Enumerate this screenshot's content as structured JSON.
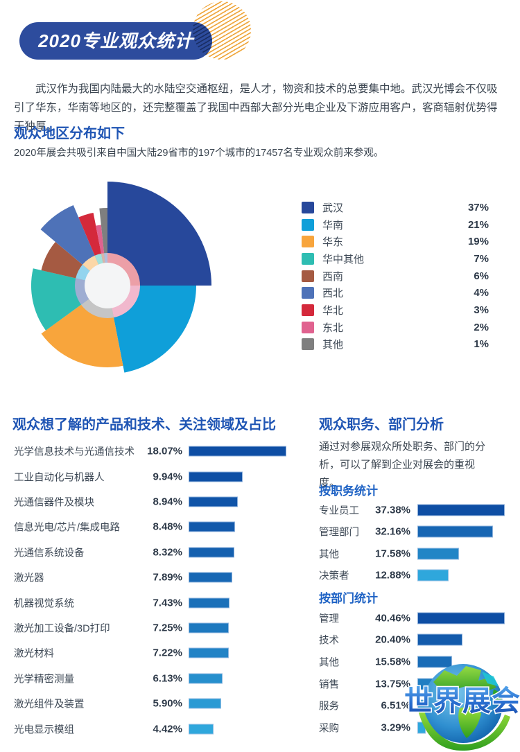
{
  "header": {
    "title": "2020专业观众统计"
  },
  "intro_text": "武汉作为我国内陆最大的水陆空交通枢纽，是人才，物资和技术的总要集中地。武汉光博会不仅吸引了华东，华南等地区的，还完整覆盖了我国中西部大部分光电企业及下游应用客户，客商辐射优势得天独厚。",
  "region_section": {
    "title": "观众地区分布如下",
    "description": "2020年展会共吸引来自中国大陆29省市的197个城市的17457名专业观众前来参观。"
  },
  "products_section": {
    "title": "观众想了解的产品和技术、关注领域及占比"
  },
  "audience_section": {
    "title": "观众职务、部门分析",
    "description": "通过对参展观众所处职务、部门的分析，可以了解到企业对展会的重视度。",
    "by_role_title": "按职务统计",
    "by_dept_title": "按部门统计"
  },
  "watermark": {
    "text": "世界展会"
  },
  "colors": {
    "title_blue": "#1f55b4",
    "subtitle_blue": "#1e62c4",
    "text_dark": "#3b4550",
    "pill_navy": "#2d4c9d",
    "stripe_orange": "#f0a83f",
    "bar_dark": "#0e4ea4",
    "bar_light": "#2fa7dc"
  },
  "chart_data": [
    {
      "id": "regions",
      "type": "pie",
      "style": "rose",
      "title": "观众地区分布",
      "unit": "%",
      "legend_position": "right",
      "categories": [
        "武汉",
        "华南",
        "华东",
        "华中其他",
        "西南",
        "西北",
        "华北",
        "东北",
        "其他"
      ],
      "values": [
        37,
        21,
        19,
        7,
        6,
        4,
        3,
        2,
        1
      ],
      "colors": [
        "#27489b",
        "#0f9fd9",
        "#f8a53c",
        "#2ebdb2",
        "#a55a42",
        "#4e72b8",
        "#d4293b",
        "#e0628f",
        "#7f7f7f"
      ]
    },
    {
      "id": "products",
      "type": "bar",
      "orientation": "horizontal",
      "title": "观众想了解的产品和技术、关注领域及占比",
      "unit": "%",
      "categories": [
        "光学信息技术与光通信技术",
        "工业自动化与机器人",
        "光通信器件及模块",
        "信息光电/芯片/集成电路",
        "光通信系统设备",
        "激光器",
        "机器视觉系统",
        "激光加工设备/3D打印",
        "激光材料",
        "光学精密测量",
        "激光组件及装置",
        "光电显示模组"
      ],
      "values": [
        18.07,
        9.94,
        8.94,
        8.48,
        8.32,
        7.89,
        7.43,
        7.25,
        7.22,
        6.13,
        5.9,
        4.42
      ]
    },
    {
      "id": "by_role",
      "type": "bar",
      "orientation": "horizontal",
      "title": "按职务统计",
      "unit": "%",
      "categories": [
        "专业员工",
        "管理部门",
        "其他",
        "决策者"
      ],
      "values": [
        37.38,
        32.16,
        17.58,
        12.88
      ]
    },
    {
      "id": "by_dept",
      "type": "bar",
      "orientation": "horizontal",
      "title": "按部门统计",
      "unit": "%",
      "categories": [
        "管理",
        "技术",
        "其他",
        "销售",
        "服务",
        "采购"
      ],
      "values": [
        40.46,
        20.4,
        15.58,
        13.75,
        6.51,
        3.29
      ]
    }
  ]
}
